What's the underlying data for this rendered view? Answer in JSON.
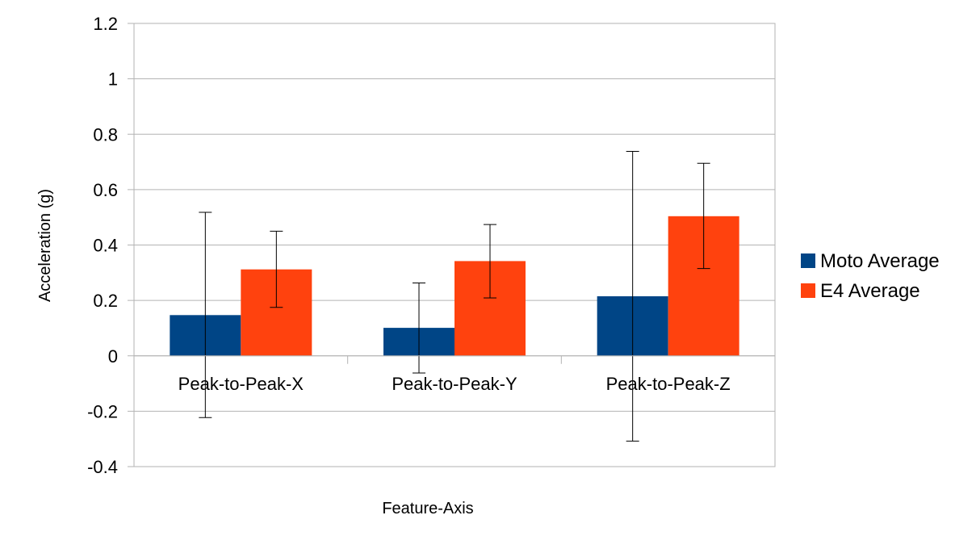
{
  "chart_data": {
    "type": "bar",
    "title": "",
    "xlabel": "Feature-Axis",
    "ylabel": "Acceleration (g)",
    "ylim": [
      -0.4,
      1.2
    ],
    "yticks": [
      -0.4,
      -0.2,
      0,
      0.2,
      0.4,
      0.6,
      0.8,
      1,
      1.2
    ],
    "ytick_labels": [
      "-0.4",
      "-0.2",
      "0",
      "0.2",
      "0.4",
      "0.6",
      "0.8",
      "1",
      "1.2"
    ],
    "grid": true,
    "legend_position": "right",
    "categories": [
      "Peak-to-Peak-X",
      "Peak-to-Peak-Y",
      "Peak-to-Peak-Z"
    ],
    "series": [
      {
        "name": "Moto Average",
        "color": "#004586",
        "values": [
          0.147,
          0.101,
          0.215
        ],
        "error_low": [
          -0.223,
          -0.062,
          -0.308
        ],
        "error_high": [
          0.518,
          0.263,
          0.738
        ]
      },
      {
        "name": "E4 Average",
        "color": "#ff420e",
        "values": [
          0.312,
          0.342,
          0.504
        ],
        "error_low": [
          0.175,
          0.209,
          0.315
        ],
        "error_high": [
          0.45,
          0.474,
          0.695
        ]
      }
    ]
  }
}
